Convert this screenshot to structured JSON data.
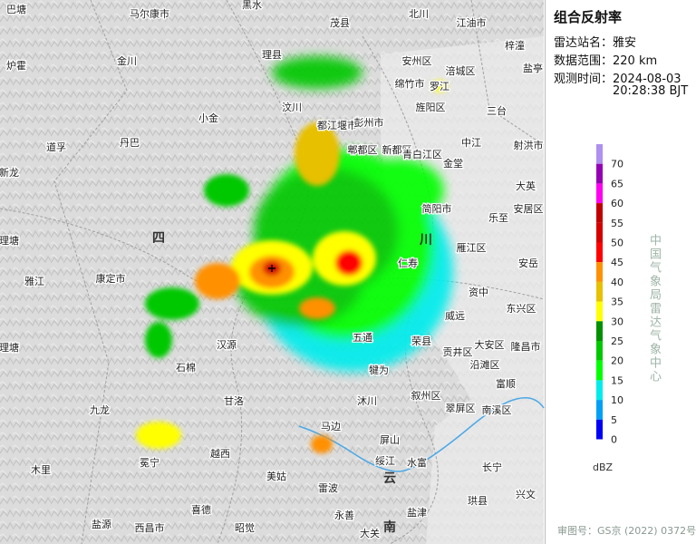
{
  "panel": {
    "title": "组合反射率",
    "station_label": "雷达站名：",
    "station": "雅安",
    "range_label": "数据范围：",
    "range": "220 km",
    "time_label": "观测时间：",
    "date": "2024-08-03",
    "time": "20:28:38 BJT",
    "legend": {
      "values": [
        70,
        65,
        60,
        55,
        50,
        45,
        40,
        35,
        30,
        25,
        20,
        15,
        10,
        5,
        0
      ],
      "colors": [
        "#ad90f0",
        "#9600b4",
        "#ff00f0",
        "#c00000",
        "#d40000",
        "#ff0000",
        "#ff9000",
        "#e7c000",
        "#ffff00",
        "#009000",
        "#00c800",
        "#00ff00",
        "#00ecec",
        "#01a0f6",
        "#0000f6"
      ],
      "unit": "dBZ"
    },
    "organization": "中国气象局雷达气象中心",
    "approval": "审图号：GS京 (2022) 0372号"
  },
  "map": {
    "labels": [
      "巴塘",
      "马尔康市",
      "黑水",
      "茂县",
      "北川",
      "江油市",
      "梓潼",
      "炉霍",
      "金川",
      "理县",
      "安州区",
      "涪城区",
      "盐亭",
      "绵竹市",
      "罗江",
      "汶川",
      "都江堰市",
      "彭州市",
      "小金",
      "旌阳区",
      "三台",
      "丹巴",
      "郫都区",
      "新都区",
      "青白江区",
      "中江",
      "射洪市",
      "道孚",
      "新龙",
      "金堂",
      "大英",
      "安居区",
      "简阳市",
      "乐至",
      "四",
      "川",
      "理塘",
      "雅江",
      "康定市",
      "雁江区",
      "安岳",
      "仁寿",
      "资中",
      "东兴区",
      "威远",
      "大安区",
      "隆昌市",
      "荣县",
      "贡井区",
      "沿滩区",
      "五通",
      "汉源",
      "石棉",
      "犍为",
      "富顺",
      "理塘",
      "甘洛",
      "九龙",
      "叙州区",
      "翠屏区",
      "南溪区",
      "沐川",
      "马边",
      "屏山",
      "越西",
      "冕宁",
      "木里",
      "美姑",
      "绥江",
      "云",
      "水富",
      "长宁",
      "兴文",
      "雷波",
      "喜德",
      "盐津",
      "珙县",
      "永善",
      "大关",
      "盐源",
      "西昌市",
      "昭觉",
      "南"
    ]
  }
}
